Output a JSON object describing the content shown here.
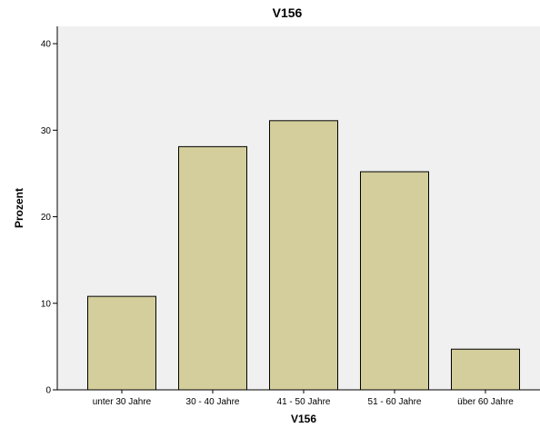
{
  "chart_data": {
    "type": "bar",
    "title": "V156",
    "xlabel": "V156",
    "ylabel": "Prozent",
    "categories": [
      "unter 30 Jahre",
      "30 - 40 Jahre",
      "41 - 50 Jahre",
      "51 - 60 Jahre",
      "über 60 Jahre"
    ],
    "values": [
      10.8,
      28.1,
      31.1,
      25.2,
      4.7
    ],
    "ylim": [
      0,
      42
    ],
    "yticks": [
      0,
      10,
      20,
      30,
      40
    ],
    "grid": false,
    "colors": {
      "bar_fill": "#D3CE9B",
      "bar_stroke": "#000000",
      "plot_bg": "#F0F0F0"
    }
  }
}
